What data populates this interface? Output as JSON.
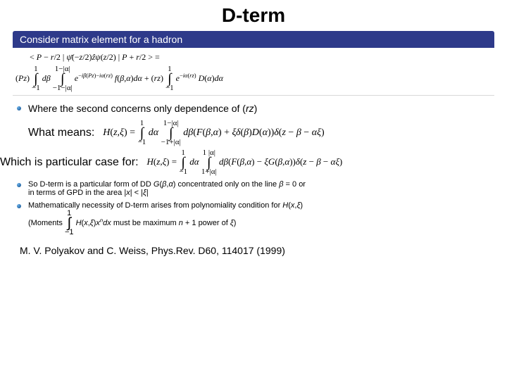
{
  "title": "D-term",
  "block_header": "Consider matrix element for a hadron",
  "formula_main": "< P − r/2|ψ̄(−z/2)ẑψ(z/2)|P + r/2 >=",
  "formula_main2": "(Pz) ∫₁⁻¹ dβ ∫₋₁₋|α|¹⁻|α| e⁻ⁱβ(Pz)−iα(rz) f(β,α)dα + (rz) ∫₁⁻¹ e⁻ⁱα(rz) D(α)dα",
  "bullet_rz": "Where the second concerns only dependence of (rz)",
  "label_whatmeans": "What means:",
  "formula_whatmeans": "H(z,ξ) = ∫₁⁻¹ dα ∫₋₁₊|α|¹⁻|α| dβ(F(β,α) + ξδ(β)D(α))δ(z − β − αξ)",
  "label_particular": "Which is particular case for:",
  "formula_particular": "H(z,ξ) = ∫₁⁻¹ dα ∫₁₊|α|¹·|α| dβ(F(β,α) − ξG(β,α))δ(z − β − αξ)",
  "bullet_dd1": "So D-term is a particular form of DD G(β,α) concentrated only on the line β = 0 or",
  "bullet_dd2": "in terms of GPD in the area |x| < |ξ|",
  "bullet_math1": "Mathematically necessity of D-term arises from polynomiality condition for H(x,ξ)",
  "bullet_math2": "(Moments ∫₁⁻¹ H(x,ξ)xⁿdx must be maximum n + 1 power of ξ)",
  "citation": "M. V. Polyakov and C. Weiss, Phys.Rev. D60, 114017 (1999)",
  "colors": {
    "header_bg": "#2e3a8a",
    "header_fg": "#ffffff",
    "page_bg": "#ffffff",
    "text": "#000000"
  }
}
